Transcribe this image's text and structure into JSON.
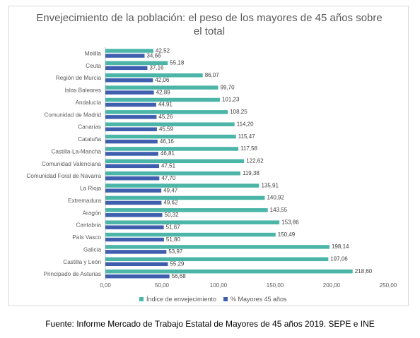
{
  "chart_data": {
    "type": "bar",
    "orientation": "horizontal",
    "title_lines": [
      "Envejecimiento de la población: el peso de los mayores de 45 años sobre",
      "el total"
    ],
    "categories": [
      "Melilla",
      "Ceuta",
      "Región de Murcia",
      "Islas Baleares",
      "Andalucía",
      "Comunidad de Madrid",
      "Canarias",
      "Cataluña",
      "Castilla-La-Mancha",
      "Comunidad Valenciana",
      "Comunidad Foral de Navarra",
      "La Rioja",
      "Extremadura",
      "Aragón",
      "Cantabria",
      "País Vasco",
      "Galicia",
      "Castilla y León",
      "Principado de Asturias"
    ],
    "series": [
      {
        "name": "Índice de envejecimiento",
        "color": "#4bb5a8",
        "values": [
          42.52,
          55.18,
          86.07,
          99.7,
          101.23,
          108.25,
          114.2,
          115.47,
          117.58,
          122.62,
          119.38,
          135.91,
          140.92,
          143.55,
          153.86,
          150.49,
          198.14,
          197.06,
          218.6
        ],
        "labels": [
          "42,52",
          "55,18",
          "86,07",
          "99,70",
          "101,23",
          "108,25",
          "114,20",
          "115,47",
          "117,58",
          "122,62",
          "119,38",
          "135,91",
          "140,92",
          "143,55",
          "153,86",
          "150,49",
          "198,14",
          "197,06",
          "218,60"
        ]
      },
      {
        "name": "% Mayores 45 años",
        "color": "#3f5fae",
        "values": [
          34.66,
          37.16,
          42.06,
          42.89,
          44.91,
          45.26,
          45.59,
          46.16,
          46.81,
          47.51,
          47.7,
          49.47,
          49.62,
          50.32,
          51.67,
          51.8,
          53.97,
          55.29,
          56.68
        ],
        "labels": [
          "34,66",
          "37,16",
          "42,06",
          "42,89",
          "44,91",
          "45,26",
          "45,59",
          "46,16",
          "46,81",
          "47,51",
          "47,70",
          "49,47",
          "49,62",
          "50,32",
          "51,67",
          "51,80",
          "53,97",
          "55,29",
          "56,68"
        ]
      }
    ],
    "xlim": [
      0,
      250
    ],
    "xticks": [
      "0,00",
      "50,00",
      "100,00",
      "150,00",
      "200,00",
      "250,00"
    ],
    "legend_position": "bottom",
    "grid": false
  },
  "caption": "Fuente: Informe Mercado de Trabajo Estatal de Mayores de 45 años 2019. SEPE e INE"
}
